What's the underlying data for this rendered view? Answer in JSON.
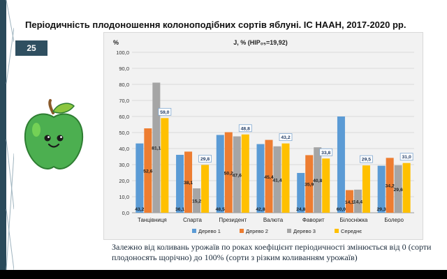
{
  "slide": {
    "title": "Періодичність плодоношення колоноподібних сортів яблуні. ІС НААН, 2017-2020 рр.",
    "page_number": "25",
    "caption": "Залежно від коливань урожаїв по роках коефіцієнт періодичності змінюється від 0 (сорти плодоносять щорічно) до 100% (сорти з різким коливанням урожаїв)"
  },
  "chart_data": {
    "type": "bar",
    "title": "J, % (НІР₀₅=19,92)",
    "ylabel": "%",
    "xlabel": "",
    "ylim": [
      0,
      100
    ],
    "yticks": [
      "0,0",
      "10,0",
      "20,0",
      "30,0",
      "40,0",
      "50,0",
      "60,0",
      "70,0",
      "80,0",
      "90,0",
      "100,0"
    ],
    "grid": true,
    "legend_position": "bottom",
    "categories": [
      "Танцівниця",
      "Спарта",
      "Президент",
      "Валюта",
      "Фаворит",
      "Білосніжка",
      "Болеро"
    ],
    "series": [
      {
        "name": "Дерево 1",
        "color": "#5b9bd5",
        "values": [
          43.2,
          36.1,
          48.5,
          42.8,
          24.8,
          60.0,
          29.3
        ],
        "labels": [
          "43,2",
          "36,1",
          "48,5",
          "42,8",
          "24,8",
          "60,0",
          "29,3"
        ]
      },
      {
        "name": "Дерево 2",
        "color": "#ed7d31",
        "values": [
          52.6,
          38.1,
          50.2,
          45.4,
          35.9,
          14.1,
          34.2
        ],
        "labels": [
          "52,6",
          "38,1",
          "50,2",
          "45,4",
          "35,9",
          "14,1",
          "34,2"
        ]
      },
      {
        "name": "Дерево 3",
        "color": "#a5a5a5",
        "values": [
          81.1,
          15.2,
          47.6,
          41.4,
          40.8,
          14.4,
          29.6
        ],
        "labels": [
          "81,1",
          "15,2",
          "47,6",
          "41,4",
          "40,8",
          "14,4",
          "29,6"
        ]
      },
      {
        "name": "Середнє",
        "color": "#ffc000",
        "values": [
          59.0,
          29.8,
          48.8,
          43.2,
          33.8,
          29.5,
          31.0
        ],
        "labels": [
          "59,0",
          "29,8",
          "48,8",
          "43,2",
          "33,8",
          "29,5",
          "31,0"
        ]
      }
    ]
  }
}
